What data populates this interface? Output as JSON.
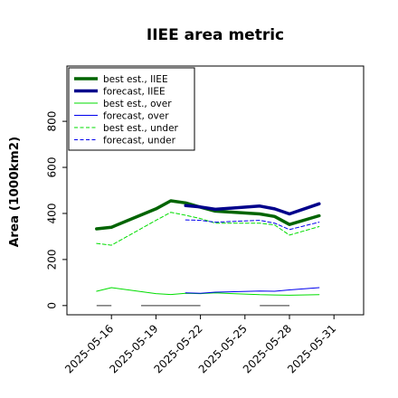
{
  "chart_data": {
    "type": "line",
    "title": "IIEE area metric",
    "xlabel": "",
    "ylabel": "Area (1000km2)",
    "xlim": [
      "2025-05-13",
      "2025-06-02"
    ],
    "ylim": [
      -40,
      1040
    ],
    "yticks": [
      0,
      200,
      400,
      600,
      800
    ],
    "xticks": [
      "2025-05-16",
      "2025-05-19",
      "2025-05-22",
      "2025-05-25",
      "2025-05-28",
      "2025-05-31"
    ],
    "highlight_tick": "2025-05-22",
    "highlight_color": "#228b22",
    "grid": false,
    "legend": "top-left",
    "series": [
      {
        "name": "best est., IIEE",
        "color": "#006400",
        "style": "solid",
        "weight": "thick",
        "x": [
          "2025-05-15",
          "2025-05-16",
          "2025-05-19",
          "2025-05-20",
          "2025-05-21",
          "2025-05-22",
          "2025-05-23",
          "2025-05-26",
          "2025-05-27",
          "2025-05-28",
          "2025-05-30"
        ],
        "y": [
          333,
          340,
          420,
          455,
          446,
          427,
          410,
          398,
          387,
          352,
          390
        ]
      },
      {
        "name": "forecast, IIEE",
        "color": "#00008b",
        "style": "solid",
        "weight": "thick",
        "x": [
          "2025-05-21",
          "2025-05-22",
          "2025-05-23",
          "2025-05-26",
          "2025-05-27",
          "2025-05-28",
          "2025-05-30"
        ],
        "y": [
          434,
          428,
          418,
          432,
          420,
          398,
          442
        ]
      },
      {
        "name": "best est., over",
        "color": "#00dd00",
        "style": "solid",
        "weight": "thin",
        "x": [
          "2025-05-15",
          "2025-05-16",
          "2025-05-19",
          "2025-05-20",
          "2025-05-21",
          "2025-05-22",
          "2025-05-23",
          "2025-05-26",
          "2025-05-27",
          "2025-05-28",
          "2025-05-30"
        ],
        "y": [
          62,
          78,
          52,
          48,
          53,
          52,
          55,
          47,
          46,
          45,
          47
        ]
      },
      {
        "name": "forecast, over",
        "color": "#0000ee",
        "style": "solid",
        "weight": "thin",
        "x": [
          "2025-05-21",
          "2025-05-22",
          "2025-05-23",
          "2025-05-26",
          "2025-05-27",
          "2025-05-28",
          "2025-05-30"
        ],
        "y": [
          55,
          53,
          58,
          63,
          62,
          68,
          78
        ]
      },
      {
        "name": "best est., under",
        "color": "#00dd00",
        "style": "dashed",
        "weight": "thin",
        "x": [
          "2025-05-15",
          "2025-05-16",
          "2025-05-19",
          "2025-05-20",
          "2025-05-21",
          "2025-05-22",
          "2025-05-23",
          "2025-05-26",
          "2025-05-27",
          "2025-05-28",
          "2025-05-30"
        ],
        "y": [
          270,
          262,
          370,
          405,
          392,
          378,
          358,
          358,
          350,
          306,
          343
        ]
      },
      {
        "name": "forecast, under",
        "color": "#0000ee",
        "style": "dashed",
        "weight": "thin",
        "x": [
          "2025-05-21",
          "2025-05-22",
          "2025-05-23",
          "2025-05-26",
          "2025-05-27",
          "2025-05-28",
          "2025-05-30"
        ],
        "y": [
          372,
          370,
          362,
          370,
          358,
          330,
          362
        ]
      }
    ],
    "gaps": [
      {
        "start": "2025-05-15",
        "end": "2025-05-16",
        "y": 0,
        "color": "#808080"
      },
      {
        "start": "2025-05-18",
        "end": "2025-05-22",
        "y": 0,
        "color": "#808080"
      },
      {
        "start": "2025-05-26",
        "end": "2025-05-28",
        "y": 0,
        "color": "#808080"
      }
    ]
  }
}
